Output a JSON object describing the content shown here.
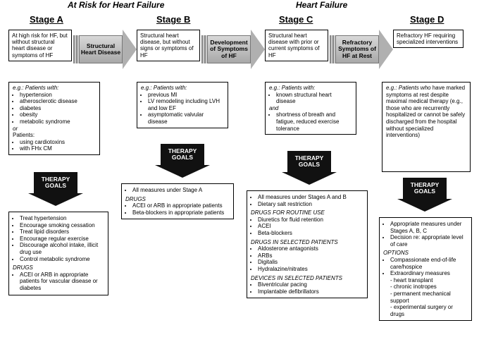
{
  "headers": {
    "group1": "At Risk for Heart Failure",
    "group2": "Heart Failure",
    "stageA": "Stage A",
    "stageB": "Stage B",
    "stageC": "Stage C",
    "stageD": "Stage D"
  },
  "stageDesc": {
    "A": "At high risk for HF, but without structural heart disease or symptoms of HF",
    "B": "Structural heart disease, but without signs or symptoms of HF",
    "C": "Structural heart disease with prior or current symptoms of HF",
    "D": "Refractory HF requiring specialized interventions"
  },
  "arrows": {
    "AB": "Structural Heart Disease",
    "BC": "Development of Symptoms of HF",
    "CD": "Refractory Symptoms of HF at Rest"
  },
  "examples": {
    "prefix": "e.g.: Patients with:",
    "prefixD": "e.g.: Patients who",
    "A": {
      "items": [
        "hypertension",
        "atherosclerotic disease",
        "diabetes",
        "obesity",
        "metabolic syndrome"
      ],
      "or": "or",
      "p2": "Patients:",
      "items2": [
        "using cardiotoxins",
        "with FHx CM"
      ]
    },
    "B": {
      "items": [
        "previous MI",
        "LV remodeling including LVH and low EF",
        "asymptomatic valvular disease"
      ]
    },
    "C": {
      "items": [
        "known structural heart disease"
      ],
      "and": "and",
      "items2": [
        "shortness of breath and fatigue, reduced exercise tolerance"
      ]
    },
    "D": {
      "text": "have marked symptoms at rest despite maximal medical therapy (e.g., those who are recurrently hospitalized or cannot be safely discharged from the hospital without specialized interventions)"
    }
  },
  "therapyLabel": "THERAPY GOALS",
  "therapy": {
    "A": {
      "items": [
        "Treat hypertension",
        "Encourage smoking cessation",
        "Treat lipid disorders",
        "Encourage regular exercise",
        "Discourage alcohol intake, illicit drug use",
        "Control metabolic syndrome"
      ],
      "drugsLabel": "DRUGS",
      "drugs": [
        "ACEI or ARB in appropriate patients for vascular disease or diabetes"
      ]
    },
    "B": {
      "top": [
        "All measures under Stage A"
      ],
      "drugsLabel": "DRUGS",
      "drugs": [
        "ACEI or ARB in appropriate patients",
        "Beta-blockers in appropriate patients"
      ]
    },
    "C": {
      "top": [
        "All measures under Stages A and B",
        "Dietary salt restriction"
      ],
      "sec1Label": "DRUGS FOR ROUTINE USE",
      "sec1": [
        "Diuretics for fluid retention",
        "ACEI",
        "Beta-blockers"
      ],
      "sec2Label": "DRUGS IN SELECTED PATIENTS",
      "sec2": [
        "Aldosterone antagonists",
        "ARBs",
        "Digitalis",
        "Hydralazine/nitrates"
      ],
      "sec3Label": "DEVICES IN SELECTED PATIENTS",
      "sec3": [
        "Biventricular pacing",
        "Implantable defibrillators"
      ]
    },
    "D": {
      "top": [
        "Appropriate measures under Stages A, B, C",
        "Decision re: appropriate level of care"
      ],
      "optLabel": "OPTIONS",
      "opts": [
        "Compassionate end-of-life care/hospice",
        "Extraordinary measures"
      ],
      "sub": [
        "heart transplant",
        "chronic inotropes",
        "permanent mechanical support",
        "experimental surgery or drugs"
      ]
    }
  }
}
